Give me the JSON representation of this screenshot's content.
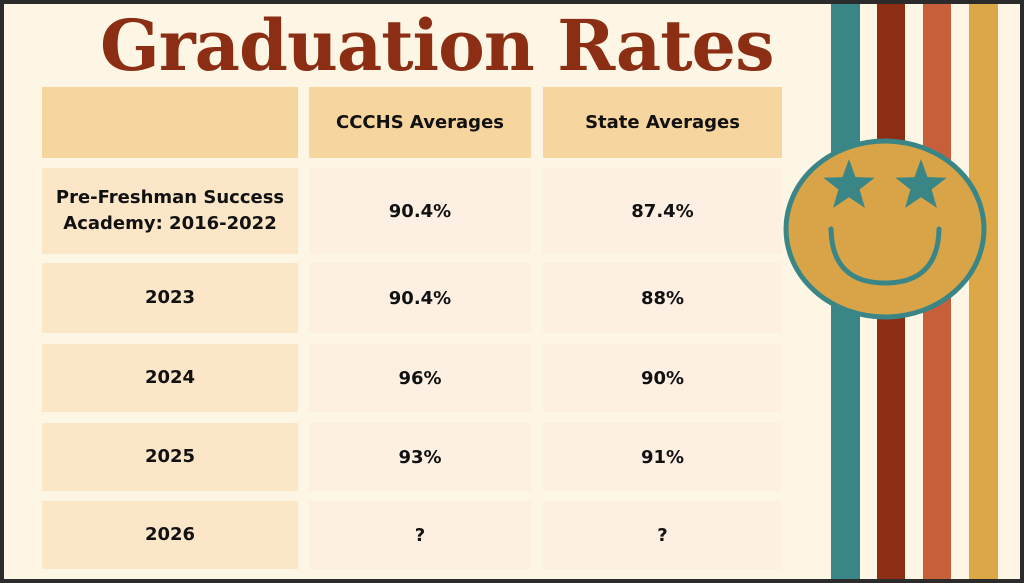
{
  "title": "Graduation Rates",
  "table": {
    "headers": [
      "",
      "CCCHS Averages",
      "State Averages"
    ],
    "rows": [
      {
        "label": "Pre-Freshman Success Academy: 2016-2022",
        "ccchs": "90.4%",
        "state": "87.4%"
      },
      {
        "label": "2023",
        "ccchs": "90.4%",
        "state": "88%"
      },
      {
        "label": "2024",
        "ccchs": "96%",
        "state": "90%"
      },
      {
        "label": "2025",
        "ccchs": "93%",
        "state": "91%"
      },
      {
        "label": "2026",
        "ccchs": "?",
        "state": "?"
      }
    ]
  },
  "decoration": {
    "stripe_colors": [
      "#3a8686",
      "#8c2e14",
      "#c75f3a",
      "#dca746"
    ],
    "smiley_face_color": "#d8a447",
    "smiley_line_color": "#3a8686",
    "smiley_icon": "star-eyes-smiley-icon"
  },
  "colors": {
    "title": "#8c2e14",
    "header_cell": "#f7d59e",
    "label_cell": "#fbe6c7",
    "value_cell": "#fdf0e2",
    "background": "#fdf6e4"
  }
}
